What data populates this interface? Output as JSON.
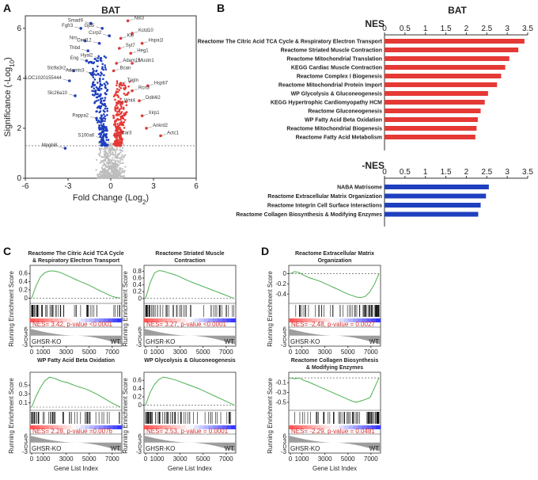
{
  "figure": {
    "panel_labels": [
      "A",
      "B",
      "C",
      "D"
    ],
    "colors": {
      "up": "#e53935",
      "down": "#1e3fbf",
      "ns": "#bdbdbd",
      "curve": "#4caf50",
      "nes_text": "#d32f2f"
    }
  },
  "volcano": {
    "title": "BAT",
    "xlabel": "Fold Change (Log",
    "xlabel_sub": "2",
    "xlabel_close": ")",
    "ylabel": "Significance (-Log",
    "ylabel_sub": "10",
    "ylabel_close": ")",
    "xlim": [
      -6,
      6
    ],
    "ylim": [
      0,
      6.5
    ],
    "xticks": [
      "-6",
      "-3",
      "0",
      "3",
      "6"
    ],
    "yticks": [
      "0",
      "2",
      "4",
      "6"
    ],
    "threshold": 1.3,
    "down_genes": [
      {
        "name": "Smad9",
        "x": -1.4,
        "y": 6.2
      },
      {
        "name": "Gjb5",
        "x": -0.6,
        "y": 6.0
      },
      {
        "name": "Fgfr3",
        "x": -2.1,
        "y": 6.0
      },
      {
        "name": "Csrp2",
        "x": -0.1,
        "y": 5.7
      },
      {
        "name": "Nrn",
        "x": -1.8,
        "y": 5.5
      },
      {
        "name": "Cxcl12",
        "x": -0.8,
        "y": 5.4
      },
      {
        "name": "Thbd",
        "x": -1.6,
        "y": 5.1
      },
      {
        "name": "Hyal2",
        "x": -0.7,
        "y": 4.8
      },
      {
        "name": "Eng",
        "x": -1.7,
        "y": 4.7
      },
      {
        "name": "Slc9a3r2",
        "x": -2.6,
        "y": 4.3
      },
      {
        "name": "Adamts3",
        "x": -1.3,
        "y": 4.2
      },
      {
        "name": "LOC1020155444",
        "x": -2.9,
        "y": 3.9
      },
      {
        "name": "Slc26a10",
        "x": -2.5,
        "y": 3.3
      },
      {
        "name": "Pappa2",
        "x": -1.0,
        "y": 2.4
      },
      {
        "name": "S100a6",
        "x": -0.6,
        "y": 1.6
      },
      {
        "name": "Mpgbi8",
        "x": -3.2,
        "y": 1.2
      }
    ],
    "up_genes": [
      {
        "name": "Nol3",
        "x": 1.2,
        "y": 6.3
      },
      {
        "name": "Kctd10",
        "x": 1.5,
        "y": 5.8
      },
      {
        "name": "Kle",
        "x": 0.7,
        "y": 5.6
      },
      {
        "name": "Hspa1l",
        "x": 2.2,
        "y": 5.4
      },
      {
        "name": "Syt7",
        "x": 0.6,
        "y": 5.2
      },
      {
        "name": "Heg1",
        "x": 1.4,
        "y": 5.0
      },
      {
        "name": "Adam15",
        "x": 0.4,
        "y": 4.6
      },
      {
        "name": "Mustn1",
        "x": 1.5,
        "y": 4.6
      },
      {
        "name": "Bcan",
        "x": 0.2,
        "y": 4.3
      },
      {
        "name": "Tagln",
        "x": 0.7,
        "y": 3.8
      },
      {
        "name": "Hspb7",
        "x": 2.6,
        "y": 3.7
      },
      {
        "name": "Rcn3",
        "x": 1.5,
        "y": 3.5
      },
      {
        "name": "Wnt4",
        "x": 0.5,
        "y": 3.0
      },
      {
        "name": "Ddit4l2",
        "x": 2.0,
        "y": 3.1
      },
      {
        "name": "Xirp1",
        "x": 2.2,
        "y": 2.5
      },
      {
        "name": "Ankrd2",
        "x": 2.5,
        "y": 2.0
      },
      {
        "name": "Actc1",
        "x": 3.5,
        "y": 1.7
      },
      {
        "name": "Car3",
        "x": 0.3,
        "y": 1.7
      }
    ]
  },
  "barplot": {
    "title": "BAT",
    "pos_header": "NES",
    "neg_header": "-NES",
    "ticks": [
      "0",
      "0.5",
      "1",
      "1.5",
      "2",
      "2.5",
      "3",
      "3.5"
    ],
    "xmax": 3.5,
    "positive": [
      {
        "label": "Reactome The Citric Acid TCA Cycle & Respiratory Electron Transport",
        "value": 3.42
      },
      {
        "label": "Reactome Striated Muscle Contraction",
        "value": 3.27
      },
      {
        "label": "Reactome Mitochondrial Translation",
        "value": 3.05
      },
      {
        "label": "KEGG Cardiac Muscle Contraction",
        "value": 2.95
      },
      {
        "label": "Reactome Complex I Biogenesis",
        "value": 2.85
      },
      {
        "label": "Reactome Mitochondrial Protein Import",
        "value": 2.75
      },
      {
        "label": "WP Glycolysis & Gluconeogenesis",
        "value": 2.53
      },
      {
        "label": "KEGG Hypertrophic Cardiomyopathy HCM",
        "value": 2.45
      },
      {
        "label": "Reactome Gluconeogenesis",
        "value": 2.35
      },
      {
        "label": "WP Fatty Acid Beta Oxidation",
        "value": 2.28
      },
      {
        "label": "Reactome Mitochondrial Biogenesis",
        "value": 2.25
      },
      {
        "label": "Reactome Fatty Acid Metabolism",
        "value": 2.22
      }
    ],
    "negative": [
      {
        "label": "NABA Matrisome",
        "value": 2.55
      },
      {
        "label": "Reactome Extracellular Matrix Organization",
        "value": 2.48
      },
      {
        "label": "Reactome Integrin Cell Surface Interactions",
        "value": 2.35
      },
      {
        "label": "Reactome Collagen Biosynthesis & Modifying Enzymes",
        "value": 2.29
      }
    ]
  },
  "gsea": {
    "ylabel": "Running Enrichment Score",
    "xlabel": "Gene List Index",
    "group_left": "GHSR-KO",
    "group_right": "WT",
    "xticks": [
      "0",
      "1000",
      "3000",
      "5000",
      "7000"
    ],
    "rank_ticks": [
      "6",
      "3",
      "0",
      "-3"
    ],
    "plots": [
      {
        "title1": "Reactome The Citric Acid TCA Cycle",
        "title2": "& Respiratory Electron Transport",
        "nes": "NES= 3.42, p-value <0.0001",
        "yticks": [
          "0.6",
          "0.4",
          "0.2",
          "0"
        ],
        "ymin": -0.05,
        "ymax": 0.72,
        "curve": [
          0,
          0.3,
          0.52,
          0.62,
          0.66,
          0.66,
          0.64,
          0.6,
          0.55,
          0.5,
          0.45,
          0.4,
          0.36,
          0.31,
          0.26,
          0.2,
          0.15,
          0.1,
          0.05,
          0.02,
          0
        ]
      },
      {
        "title1": "Reactome Striated Muscle",
        "title2": "Contraction",
        "nes": "NES= 3.27, p-value <0.0001",
        "yticks": [
          "0.8",
          "0.6",
          "0.4",
          "0.2",
          "0"
        ],
        "ymin": -0.05,
        "ymax": 0.88,
        "curve": [
          0,
          0.45,
          0.75,
          0.82,
          0.8,
          0.76,
          0.72,
          0.68,
          0.62,
          0.56,
          0.5,
          0.45,
          0.4,
          0.35,
          0.3,
          0.25,
          0.2,
          0.15,
          0.1,
          0.05,
          0
        ]
      },
      {
        "title1": "WP Fatty Acid Beta Oxidation",
        "title2": "",
        "nes": "NES= 2.28, p-value =0.0076",
        "yticks": [
          "0.5",
          "0.3",
          "0.1"
        ],
        "ymin": 0,
        "ymax": 0.72,
        "curve": [
          0,
          0.25,
          0.45,
          0.6,
          0.68,
          0.66,
          0.62,
          0.58,
          0.56,
          0.52,
          0.48,
          0.45,
          0.42,
          0.38,
          0.33,
          0.28,
          0.22,
          0.16,
          0.1,
          0.05,
          0
        ]
      },
      {
        "title1": "WP Glycolysis & Gluconeogenesis",
        "title2": "",
        "nes": "NES= 2.53, p-value = 0.0001",
        "yticks": [
          "0.6",
          "0.4",
          "0.2",
          "0"
        ],
        "ymin": -0.05,
        "ymax": 0.72,
        "curve": [
          0,
          0.3,
          0.5,
          0.62,
          0.68,
          0.66,
          0.63,
          0.6,
          0.56,
          0.52,
          0.48,
          0.44,
          0.4,
          0.35,
          0.3,
          0.25,
          0.2,
          0.15,
          0.1,
          0.05,
          0
        ]
      },
      {
        "title1": "Reactome Extracellular Matrix",
        "title2": "Organization",
        "nes": "NES= -2.48, p-value = 0.0027",
        "yticks": [
          "0",
          "-0.2",
          "-0.4"
        ],
        "ymin": -0.52,
        "ymax": 0.1,
        "curve": [
          0,
          0.04,
          0.02,
          -0.03,
          -0.07,
          -0.1,
          -0.13,
          -0.16,
          -0.2,
          -0.24,
          -0.28,
          -0.32,
          -0.36,
          -0.4,
          -0.43,
          -0.46,
          -0.47,
          -0.44,
          -0.35,
          -0.2,
          0
        ]
      },
      {
        "title1": "Reactome Collagen Biosynthesis",
        "title2": "& Modifying Enzymes",
        "nes": "NES= -2.29, p-value = 0.0481",
        "yticks": [
          "-0.1",
          "-0.3",
          "-0.5"
        ],
        "ymin": -0.6,
        "ymax": 0.05,
        "curve": [
          0,
          -0.02,
          0,
          -0.05,
          -0.08,
          -0.12,
          -0.16,
          -0.2,
          -0.24,
          -0.28,
          -0.32,
          -0.36,
          -0.4,
          -0.44,
          -0.48,
          -0.5,
          -0.47,
          -0.44,
          -0.4,
          -0.2,
          0
        ]
      }
    ]
  }
}
